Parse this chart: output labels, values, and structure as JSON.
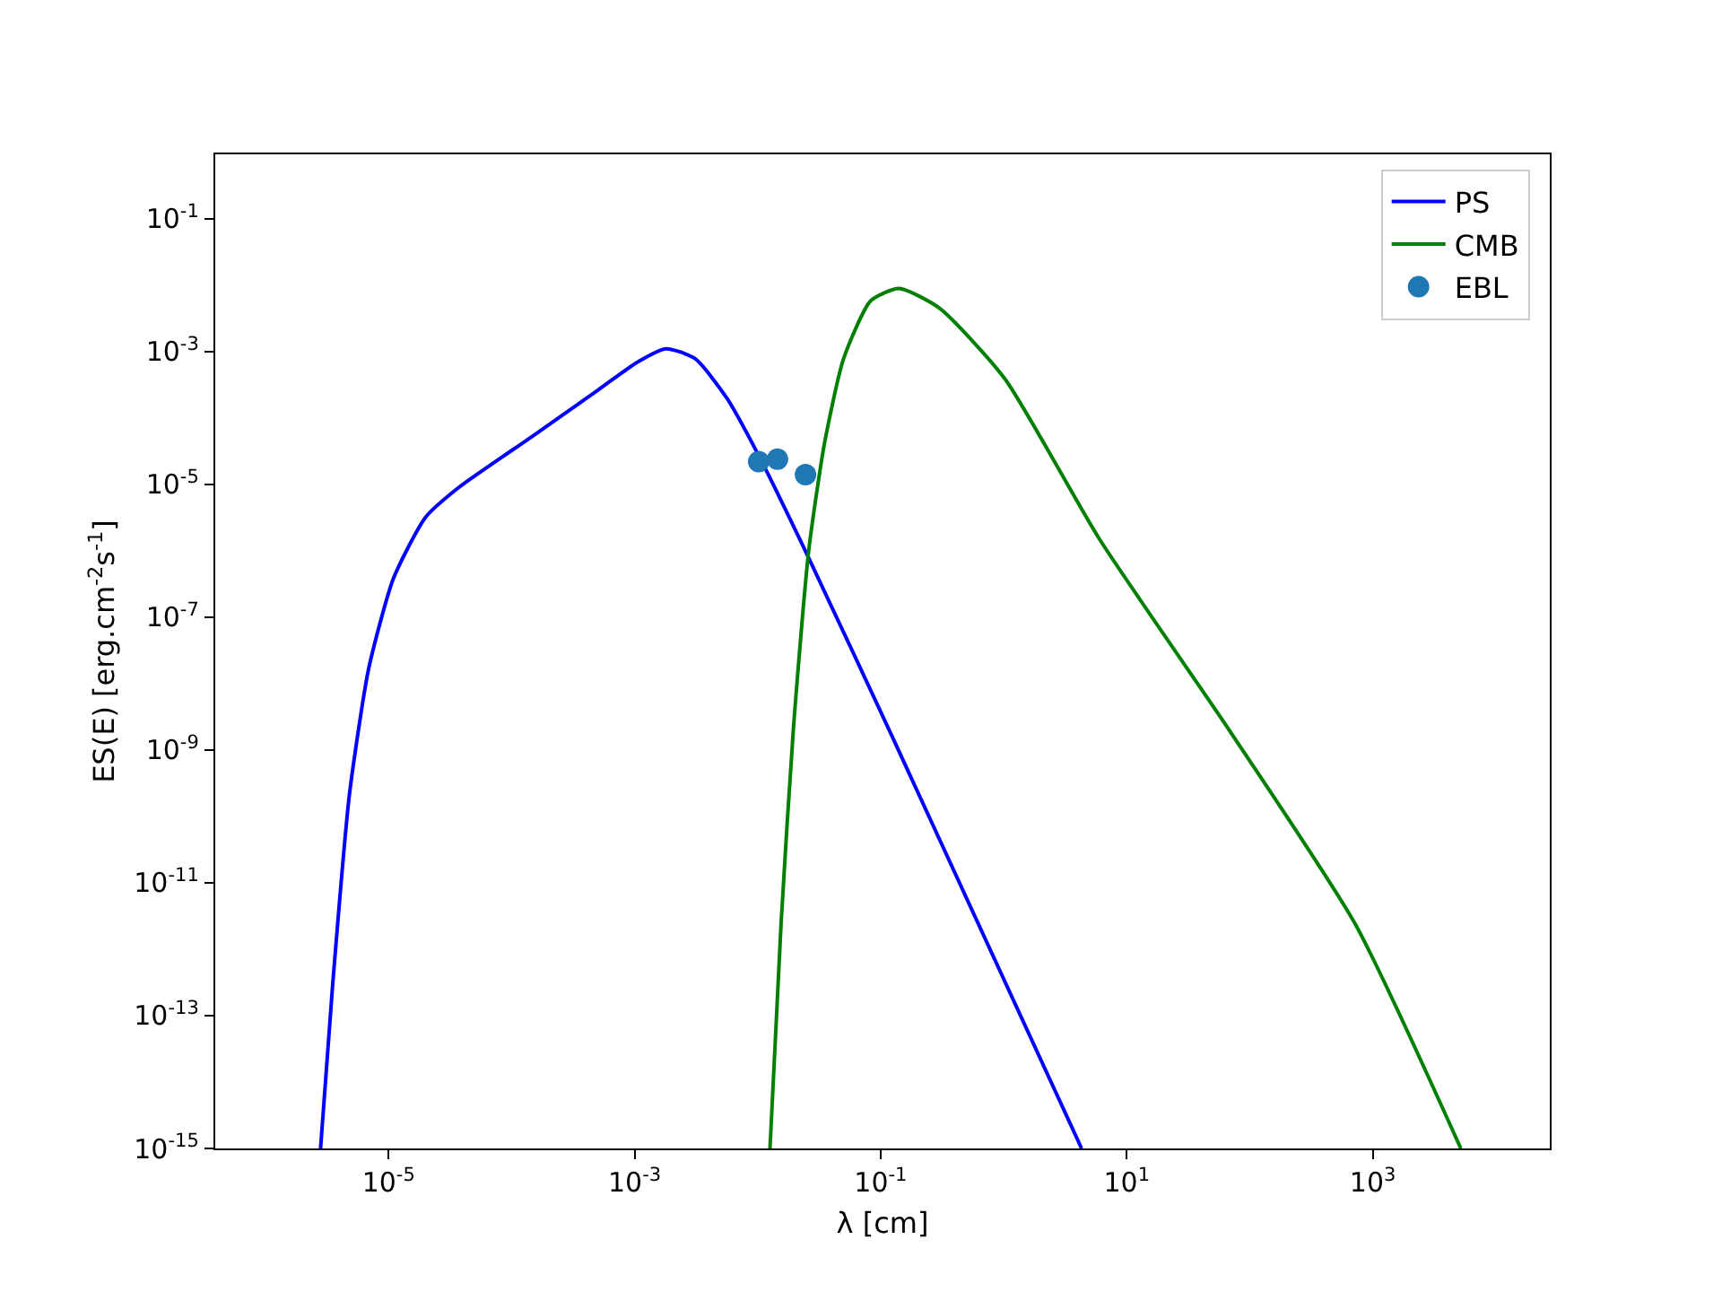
{
  "chart_data": {
    "type": "line",
    "xlabel": "λ [cm]",
    "ylabel": "ES(E) [erg.cm$^{-2}$s$^{-1}$]",
    "log": "xy",
    "legend": "top right",
    "xlim": [
      3.9e-07,
      27500.0
    ],
    "ylim": [
      1e-15,
      0.93
    ],
    "xticks": [
      {
        "value": 1e-05,
        "label": "10$^{-5}$"
      },
      {
        "value": 0.001,
        "label": "10$^{-3}$"
      },
      {
        "value": 0.1,
        "label": "10$^{-1}$"
      },
      {
        "value": 10,
        "label": "10$^{1}$"
      },
      {
        "value": 1000,
        "label": "10$^{3}$"
      }
    ],
    "yticks": [
      {
        "value": 1e-15,
        "label": "10$^{-15}$"
      },
      {
        "value": 1e-13,
        "label": "10$^{-13}$"
      },
      {
        "value": 1e-11,
        "label": "10$^{-11}$"
      },
      {
        "value": 1e-09,
        "label": "10$^{-9}$"
      },
      {
        "value": 1e-07,
        "label": "10$^{-7}$"
      },
      {
        "value": 1e-05,
        "label": "10$^{-5}$"
      },
      {
        "value": 0.001,
        "label": "10$^{-3}$"
      },
      {
        "value": 0.1,
        "label": "10$^{-1}$"
      }
    ],
    "series": [
      {
        "name": "PS",
        "color": "#0000ff",
        "marker": "none",
        "x": [
          2.8e-06,
          3.5e-06,
          4.8e-06,
          6.9e-06,
          1.1e-05,
          2e-05,
          3.7e-05,
          0.00015,
          0.0005,
          0.00105,
          0.0018,
          0.0031,
          0.0056,
          0.0102,
          0.026,
          0.126,
          4.3
        ],
        "values": [
          1e-15,
          2.7e-13,
          2.1e-10,
          1.7e-08,
          3.9e-07,
          3.2e-06,
          8.9e-06,
          5.4e-05,
          0.00026,
          0.00069,
          0.0011,
          0.00078,
          0.0002,
          2.7e-05,
          7.8e-07,
          1.5e-09,
          1e-15
        ]
      },
      {
        "name": "CMB",
        "color": "#008000",
        "marker": "none",
        "x": [
          0.0126,
          0.0155,
          0.0195,
          0.026,
          0.035,
          0.05,
          0.083,
          0.141,
          0.3,
          1.02,
          6.0,
          68,
          720,
          5200
        ],
        "values": [
          1e-15,
          2.4e-12,
          2e-09,
          1e-06,
          4.2e-05,
          0.00078,
          0.0058,
          0.0089,
          0.0045,
          0.00039,
          1.5e-06,
          2e-09,
          2.4e-12,
          1e-15
        ]
      },
      {
        "name": "EBL",
        "type": "scatter",
        "color": "#1f77b4",
        "marker": "circle",
        "x": [
          0.0102,
          0.0145,
          0.0245
        ],
        "values": [
          2.2e-05,
          2.4e-05,
          1.4e-05
        ]
      }
    ]
  }
}
